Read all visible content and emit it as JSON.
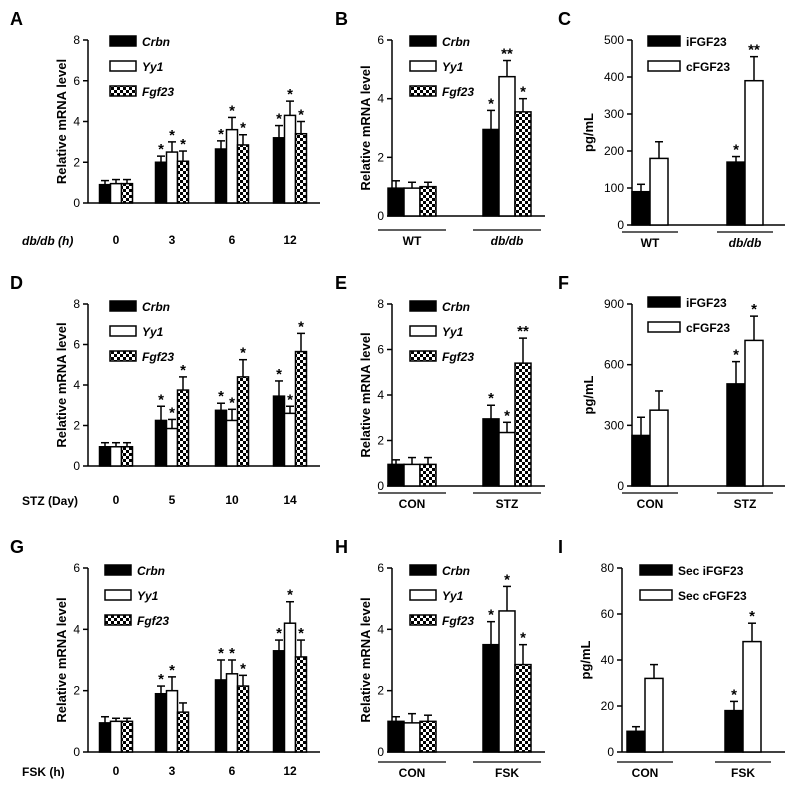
{
  "chart_data": [
    {
      "panel": "A",
      "type": "bar",
      "ylabel": "Relative mRNA level",
      "xlabel": "db/db (h)",
      "ylim": [
        0,
        8
      ],
      "yticks": [
        0,
        2,
        4,
        6,
        8
      ],
      "categories": [
        "0",
        "3",
        "6",
        "12"
      ],
      "series": [
        {
          "name": "Crbn",
          "values": [
            0.9,
            2.0,
            2.65,
            3.2
          ],
          "errors": [
            0.2,
            0.3,
            0.4,
            0.6
          ],
          "sig": [
            "",
            "*",
            "*",
            "*"
          ]
        },
        {
          "name": "Yy1",
          "values": [
            0.95,
            2.5,
            3.6,
            4.3
          ],
          "errors": [
            0.2,
            0.5,
            0.6,
            0.7
          ],
          "sig": [
            "",
            "*",
            "*",
            "*"
          ]
        },
        {
          "name": "Fgf23",
          "values": [
            0.95,
            2.05,
            2.85,
            3.4
          ],
          "errors": [
            0.2,
            0.5,
            0.5,
            0.6
          ],
          "sig": [
            "",
            "*",
            "*",
            "*"
          ]
        }
      ]
    },
    {
      "panel": "B",
      "type": "bar",
      "ylabel": "Relative mRNA level",
      "xlabel": "",
      "ylim": [
        0,
        6
      ],
      "yticks": [
        0,
        2,
        4,
        6
      ],
      "categories": [
        "WT",
        "db/db"
      ],
      "series": [
        {
          "name": "Crbn",
          "values": [
            0.95,
            2.95
          ],
          "errors": [
            0.25,
            0.65
          ],
          "sig": [
            "",
            "*"
          ]
        },
        {
          "name": "Yy1",
          "values": [
            0.95,
            4.75
          ],
          "errors": [
            0.2,
            0.55
          ],
          "sig": [
            "",
            "**"
          ]
        },
        {
          "name": "Fgf23",
          "values": [
            1.0,
            3.55
          ],
          "errors": [
            0.15,
            0.45
          ],
          "sig": [
            "",
            "*"
          ]
        }
      ]
    },
    {
      "panel": "C",
      "type": "bar",
      "ylabel": "pg/mL",
      "xlabel": "",
      "ylim": [
        0,
        500
      ],
      "yticks": [
        0,
        100,
        200,
        300,
        400,
        500
      ],
      "categories": [
        "WT",
        "db/db"
      ],
      "series": [
        {
          "name": "iFGF23",
          "values": [
            90,
            170
          ],
          "errors": [
            20,
            15
          ],
          "sig": [
            "",
            "*"
          ]
        },
        {
          "name": "cFGF23",
          "values": [
            180,
            390
          ],
          "errors": [
            45,
            65
          ],
          "sig": [
            "",
            "**"
          ]
        }
      ]
    },
    {
      "panel": "D",
      "type": "bar",
      "ylabel": "Relative mRNA level",
      "xlabel": "STZ (Day)",
      "ylim": [
        0,
        8
      ],
      "yticks": [
        0,
        2,
        4,
        6,
        8
      ],
      "categories": [
        "0",
        "5",
        "10",
        "14"
      ],
      "series": [
        {
          "name": "Crbn",
          "values": [
            0.95,
            2.25,
            2.75,
            3.45
          ],
          "errors": [
            0.2,
            0.7,
            0.35,
            0.75
          ],
          "sig": [
            "",
            "*",
            "*",
            "*"
          ]
        },
        {
          "name": "Yy1",
          "values": [
            0.95,
            1.85,
            2.25,
            2.6
          ],
          "errors": [
            0.2,
            0.45,
            0.55,
            0.35
          ],
          "sig": [
            "",
            "*",
            "*",
            "*"
          ]
        },
        {
          "name": "Fgf23",
          "values": [
            0.95,
            3.75,
            4.4,
            5.65
          ],
          "errors": [
            0.2,
            0.65,
            0.85,
            0.9
          ],
          "sig": [
            "",
            "*",
            "*",
            "*"
          ]
        }
      ]
    },
    {
      "panel": "E",
      "type": "bar",
      "ylabel": "Relative mRNA level",
      "xlabel": "",
      "ylim": [
        0,
        8
      ],
      "yticks": [
        0,
        2,
        4,
        6,
        8
      ],
      "categories": [
        "CON",
        "STZ"
      ],
      "series": [
        {
          "name": "Crbn",
          "values": [
            0.95,
            2.95
          ],
          "errors": [
            0.2,
            0.6
          ],
          "sig": [
            "",
            "*"
          ]
        },
        {
          "name": "Yy1",
          "values": [
            0.95,
            2.35
          ],
          "errors": [
            0.3,
            0.45
          ],
          "sig": [
            "",
            "*"
          ]
        },
        {
          "name": "Fgf23",
          "values": [
            0.95,
            5.4
          ],
          "errors": [
            0.3,
            1.1
          ],
          "sig": [
            "",
            "**"
          ]
        }
      ]
    },
    {
      "panel": "F",
      "type": "bar",
      "ylabel": "pg/mL",
      "xlabel": "",
      "ylim": [
        0,
        900
      ],
      "yticks": [
        0,
        300,
        600,
        900
      ],
      "categories": [
        "CON",
        "STZ"
      ],
      "series": [
        {
          "name": "iFGF23",
          "values": [
            250,
            505
          ],
          "errors": [
            90,
            110
          ],
          "sig": [
            "",
            "*"
          ]
        },
        {
          "name": "cFGF23",
          "values": [
            375,
            720
          ],
          "errors": [
            95,
            120
          ],
          "sig": [
            "",
            "*"
          ]
        }
      ]
    },
    {
      "panel": "G",
      "type": "bar",
      "ylabel": "Relative mRNA level",
      "xlabel": "FSK (h)",
      "ylim": [
        0,
        6
      ],
      "yticks": [
        0,
        2,
        4,
        6
      ],
      "categories": [
        "0",
        "3",
        "6",
        "12"
      ],
      "series": [
        {
          "name": "Crbn",
          "values": [
            0.95,
            1.9,
            2.35,
            3.3
          ],
          "errors": [
            0.2,
            0.25,
            0.65,
            0.35
          ],
          "sig": [
            "",
            "*",
            "*",
            "*"
          ]
        },
        {
          "name": "Yy1",
          "values": [
            1.0,
            2.0,
            2.55,
            4.2
          ],
          "errors": [
            0.1,
            0.45,
            0.45,
            0.7
          ],
          "sig": [
            "",
            "*",
            "*",
            "*"
          ]
        },
        {
          "name": "Fgf23",
          "values": [
            1.0,
            1.3,
            2.15,
            3.1
          ],
          "errors": [
            0.1,
            0.3,
            0.35,
            0.55
          ],
          "sig": [
            "",
            "",
            "*",
            "*"
          ]
        }
      ]
    },
    {
      "panel": "H",
      "type": "bar",
      "ylabel": "Relative mRNA level",
      "xlabel": "",
      "ylim": [
        0,
        6
      ],
      "yticks": [
        0,
        2,
        4,
        6
      ],
      "categories": [
        "CON",
        "FSK"
      ],
      "series": [
        {
          "name": "Crbn",
          "values": [
            1.0,
            3.5
          ],
          "errors": [
            0.15,
            0.75
          ],
          "sig": [
            "",
            "*"
          ]
        },
        {
          "name": "Yy1",
          "values": [
            0.95,
            4.6
          ],
          "errors": [
            0.3,
            0.8
          ],
          "sig": [
            "",
            "*"
          ]
        },
        {
          "name": "Fgf23",
          "values": [
            1.0,
            2.85
          ],
          "errors": [
            0.2,
            0.65
          ],
          "sig": [
            "",
            "*"
          ]
        }
      ]
    },
    {
      "panel": "I",
      "type": "bar",
      "ylabel": "pg/mL",
      "xlabel": "",
      "ylim": [
        0,
        80
      ],
      "yticks": [
        0,
        20,
        40,
        60,
        80
      ],
      "categories": [
        "CON",
        "FSK"
      ],
      "series": [
        {
          "name": "Sec iFGF23",
          "values": [
            9,
            18
          ],
          "errors": [
            2,
            4
          ],
          "sig": [
            "",
            "*"
          ]
        },
        {
          "name": "Sec cFGF23",
          "values": [
            32,
            48
          ],
          "errors": [
            6,
            8
          ],
          "sig": [
            "",
            "*"
          ]
        }
      ]
    }
  ]
}
